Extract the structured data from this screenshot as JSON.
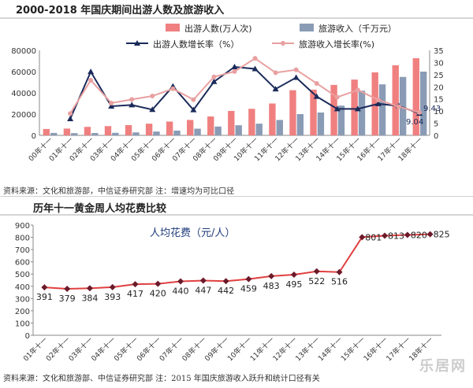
{
  "chart_data": [
    {
      "type": "bar",
      "title": "2000-2018 年国庆期间出游人数及旅游收入",
      "categories": [
        "00年十一",
        "01年十一",
        "02年十一",
        "03年十一",
        "04年十一",
        "05年十一",
        "06年十一",
        "07年十一",
        "08年十一",
        "09年十一",
        "10年十一",
        "11年十一",
        "12年十一",
        "13年十一",
        "14年十一",
        "15年十一",
        "16年十一",
        "17年十一",
        "18年十一"
      ],
      "series": [
        {
          "name": "出游人数(万人次)",
          "axis": "left",
          "kind": "bar",
          "color": "#f08080",
          "values": [
            6000,
            6400,
            8000,
            8700,
            9700,
            11000,
            13000,
            14500,
            17800,
            23000,
            25000,
            30000,
            42500,
            43000,
            47500,
            52500,
            59300,
            66000,
            72600
          ]
        },
        {
          "name": "旅游收入（千万元）",
          "axis": "left",
          "kind": "bar",
          "color": "#8a9bb5",
          "values": [
            2300,
            2100,
            2200,
            2400,
            2800,
            3600,
            4500,
            6300,
            8300,
            9500,
            11000,
            14500,
            20000,
            21500,
            28000,
            42000,
            48000,
            55000,
            60000
          ]
        },
        {
          "name": "出游人数增长率（%）",
          "axis": "right",
          "kind": "line",
          "color": "#1a2a5a",
          "values": [
            null,
            6.8,
            26.2,
            12.0,
            12.5,
            10.6,
            20.2,
            10.5,
            22.1,
            28.2,
            27.4,
            19.1,
            23.8,
            16.0,
            10.9,
            10.9,
            13.0,
            12.1,
            9.04
          ]
        },
        {
          "name": "旅游收入增长率(%)",
          "axis": "right",
          "kind": "line",
          "color": "#e9a0a0",
          "values": [
            null,
            9.0,
            22.7,
            13.3,
            14.8,
            16.2,
            19.2,
            14.7,
            24.1,
            26.3,
            31.7,
            25.8,
            27.0,
            21.4,
            15.7,
            18.7,
            14.6,
            11.8,
            9.43
          ]
        }
      ],
      "ylim_left": [
        0,
        80000
      ],
      "yticks_left": [
        0,
        20000,
        40000,
        60000,
        80000
      ],
      "ylim_right": [
        0,
        35
      ],
      "yticks_right": [
        0,
        5,
        10,
        15,
        20,
        25,
        30,
        35
      ],
      "annotations": [
        "9.43",
        "9.04"
      ],
      "legend_position": "top-right",
      "source": "资料来源：文化和旅游部，中信证券研究部     注：增速均为可比口径"
    },
    {
      "type": "line",
      "title": "历年十一黄金周人均花费比较",
      "series_label": "人均花费（元/人）",
      "categories": [
        "01年十一",
        "02年十一",
        "03年十一",
        "04年十一",
        "05年十一",
        "06年十一",
        "07年十一",
        "08年十一",
        "09年十一",
        "10年十一",
        "11年十一",
        "12年十一",
        "13年十一",
        "14年十一",
        "15年十一",
        "16年十一",
        "17年十一",
        "18年十一"
      ],
      "values": [
        391,
        379,
        384,
        393,
        417,
        420,
        440,
        447,
        442,
        459,
        483,
        495,
        522,
        516,
        801,
        813,
        820,
        825
      ],
      "labels": [
        "391",
        "379",
        "384",
        "393",
        "417",
        "420",
        "440",
        "447",
        "442",
        "459",
        "483",
        "495",
        "522",
        "516",
        "801",
        "813",
        "820",
        "825"
      ],
      "line_color": "#e04040",
      "marker_color": "#6b1a2a",
      "ylim": [
        0,
        900
      ],
      "yticks": [
        0,
        100,
        200,
        300,
        400,
        500,
        600,
        700,
        800,
        900
      ],
      "source": "资料来源：文化和旅游部、中信证券研究部     注：2015 年国庆旅游收入跃升和统计口径有关"
    }
  ],
  "watermark": "乐居网"
}
